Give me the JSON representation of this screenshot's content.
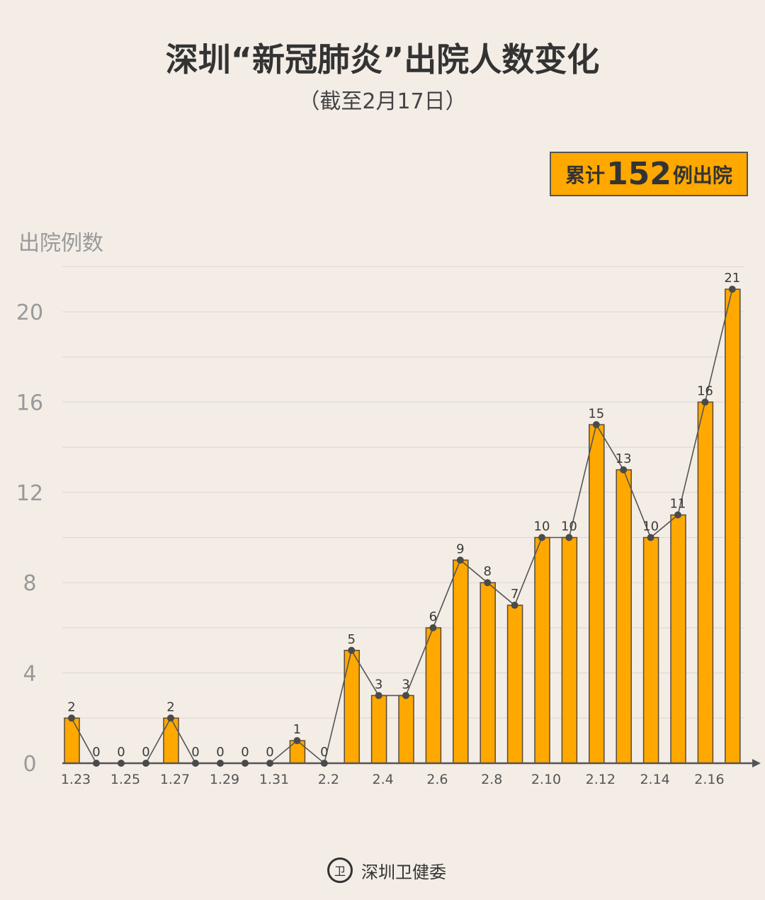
{
  "header": {
    "title": "深圳“新冠肺炎”出院人数变化",
    "subtitle": "（截至2月17日）"
  },
  "badge": {
    "prefix": "累计",
    "value": "152",
    "suffix": "例出院"
  },
  "footer": {
    "org": "深圳卫健委",
    "logo_icon": "health-commission-seal-icon"
  },
  "colors": {
    "bar": "#ffa800",
    "line": "#555555",
    "background": "#f3ede6"
  },
  "chart_data": {
    "type": "bar",
    "ylabel": "出院例数",
    "ylim": [
      0,
      22
    ],
    "yticks": [
      0,
      4,
      8,
      12,
      16,
      20
    ],
    "grid": true,
    "overlay_line": true,
    "categories": [
      "1.23",
      "1.24",
      "1.25",
      "1.26",
      "1.27",
      "1.28",
      "1.29",
      "1.30",
      "1.31",
      "2.1",
      "2.2",
      "2.3",
      "2.4",
      "2.5",
      "2.6",
      "2.7",
      "2.8",
      "2.9",
      "2.10",
      "2.11",
      "2.12",
      "2.13",
      "2.14",
      "2.15",
      "2.16",
      "2.17"
    ],
    "xtick_labels": [
      "1.23",
      "1.25",
      "1.27",
      "1.29",
      "1.31",
      "2.2",
      "2.4",
      "2.6",
      "2.8",
      "2.10",
      "2.12",
      "2.14",
      "2.16"
    ],
    "values": [
      2,
      0,
      0,
      0,
      2,
      0,
      0,
      0,
      0,
      1,
      0,
      5,
      3,
      3,
      6,
      9,
      8,
      7,
      10,
      10,
      15,
      13,
      10,
      11,
      16,
      21
    ]
  }
}
